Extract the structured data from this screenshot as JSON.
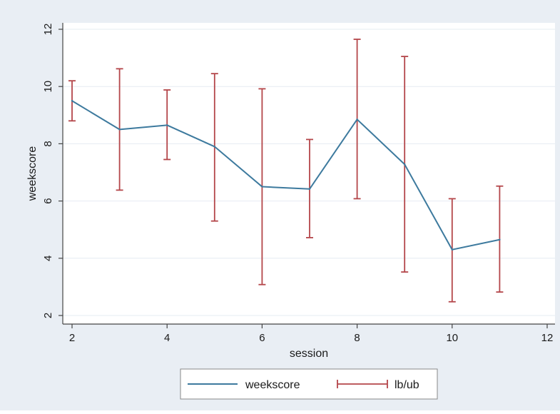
{
  "chart_data": {
    "type": "line",
    "title": "",
    "xlabel": "session",
    "ylabel": "weekscore",
    "xlim": [
      2,
      12
    ],
    "ylim": [
      2,
      12
    ],
    "x_ticks": [
      2,
      4,
      6,
      8,
      10,
      12
    ],
    "y_ticks": [
      2,
      4,
      6,
      8,
      10,
      12
    ],
    "grid": true,
    "legend_position": "bottom",
    "x": [
      2,
      3,
      4,
      5,
      6,
      7,
      8,
      9,
      10,
      11
    ],
    "series": [
      {
        "name": "weekscore",
        "kind": "line",
        "color": "#3d7a9e",
        "values": [
          9.5,
          8.5,
          8.65,
          7.9,
          6.5,
          6.42,
          8.85,
          7.28,
          4.3,
          4.65
        ]
      },
      {
        "name": "lb/ub",
        "kind": "errorbar",
        "color": "#b4464a",
        "lower": [
          8.8,
          6.38,
          7.45,
          5.3,
          3.08,
          4.72,
          6.08,
          3.52,
          2.48,
          2.82
        ],
        "upper": [
          10.2,
          10.62,
          9.88,
          10.45,
          9.92,
          8.15,
          11.65,
          11.05,
          6.08,
          6.52
        ]
      }
    ]
  },
  "colors": {
    "outer_background": "#e9eef4",
    "plot_background": "#ffffff",
    "grid": "#e6ecf2",
    "axis": "#444444"
  }
}
